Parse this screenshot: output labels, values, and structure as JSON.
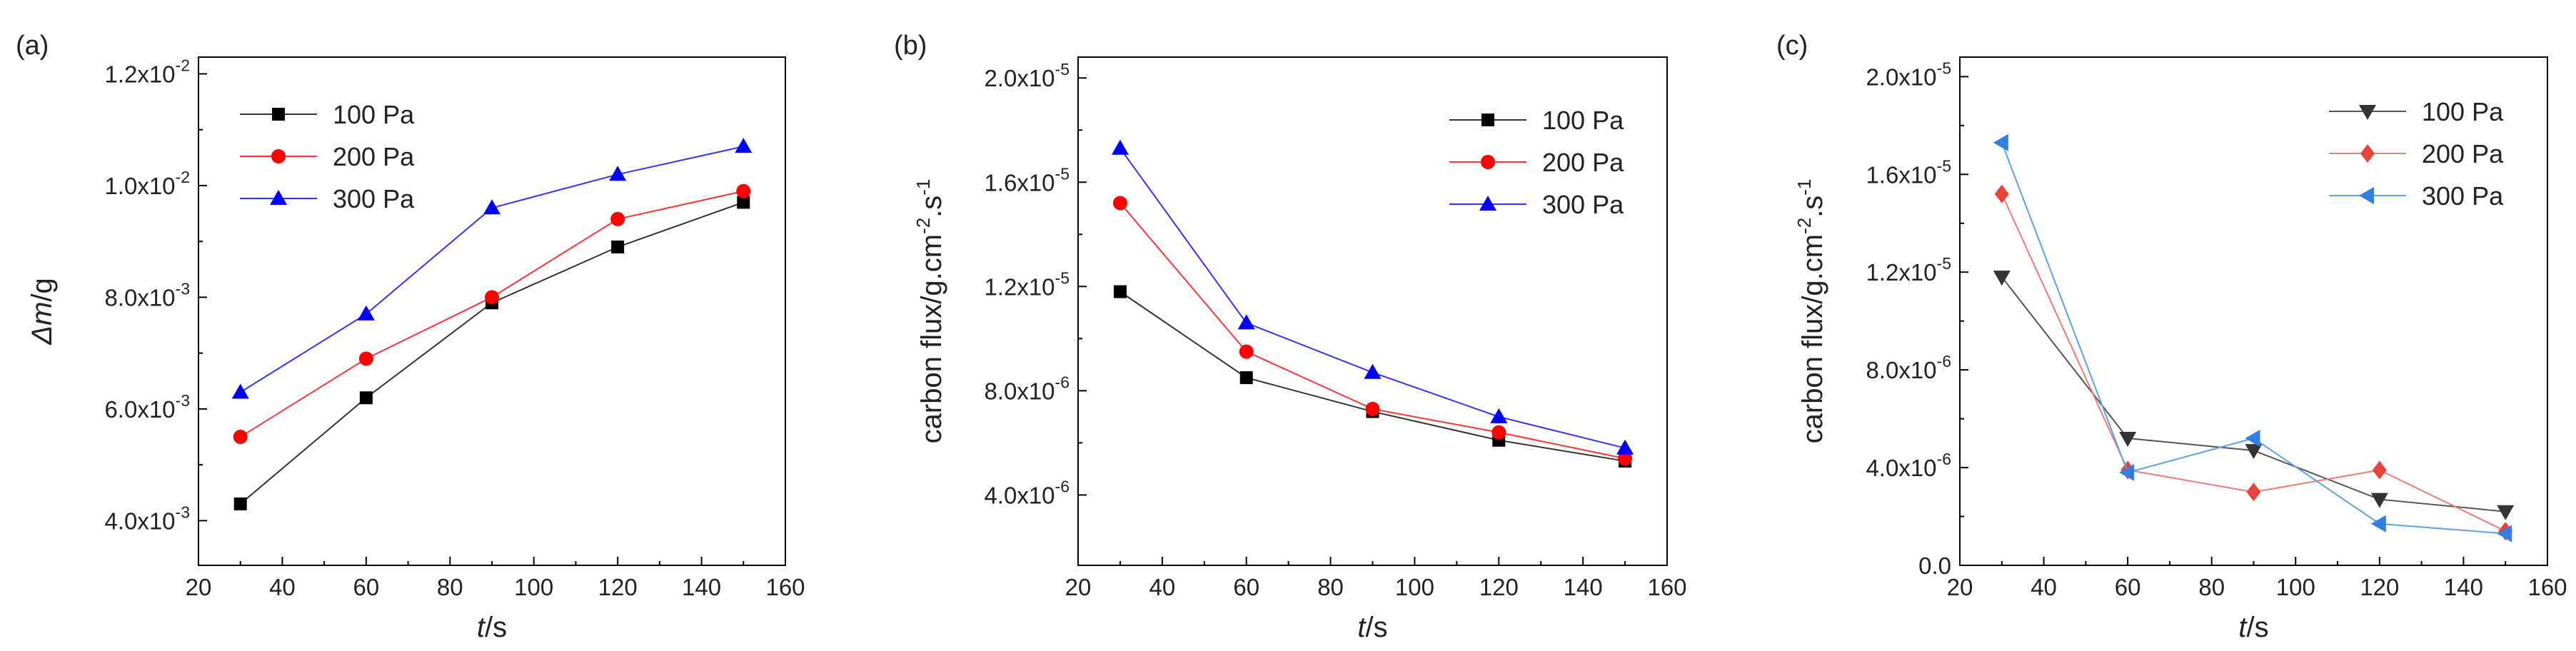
{
  "chart_data": [
    {
      "type": "line",
      "panel": "(a)",
      "xlabel_italic": "t",
      "xlabel_unit": "/s",
      "ylabel_delta": "Δ",
      "ylabel_italic": "m",
      "ylabel_unit": "/g",
      "x": [
        30,
        60,
        90,
        120,
        150
      ],
      "xlim": [
        20,
        160
      ],
      "xticks": [
        20,
        40,
        60,
        80,
        100,
        120,
        140,
        160
      ],
      "ylim": [
        0.0032,
        0.0123
      ],
      "yticks": [
        {
          "value": 0.004,
          "mant": "4.0x10",
          "exp": "-3"
        },
        {
          "value": 0.006,
          "mant": "6.0x10",
          "exp": "-3"
        },
        {
          "value": 0.008,
          "mant": "8.0x10",
          "exp": "-3"
        },
        {
          "value": 0.01,
          "mant": "1.0x10",
          "exp": "-2"
        },
        {
          "value": 0.012,
          "mant": "1.2x10",
          "exp": "-2"
        }
      ],
      "legend_position": "top-left",
      "series": [
        {
          "name": "100 Pa",
          "marker": "square",
          "color": "#000000",
          "line_color": "#333333",
          "values": [
            0.0043,
            0.0062,
            0.0079,
            0.0089,
            0.0097
          ]
        },
        {
          "name": "200 Pa",
          "marker": "circle",
          "color": "#ff0000",
          "line_color": "#ff3333",
          "values": [
            0.0055,
            0.0069,
            0.008,
            0.0094,
            0.0099
          ]
        },
        {
          "name": "300 Pa",
          "marker": "triangle-up",
          "color": "#0000ff",
          "line_color": "#3333ff",
          "values": [
            0.0063,
            0.0077,
            0.0096,
            0.0102,
            0.0107
          ]
        }
      ]
    },
    {
      "type": "line",
      "panel": "(b)",
      "xlabel_italic": "t",
      "xlabel_unit": "/s",
      "ylabel": "carbon flux/g.cm",
      "ylabel_sup1": "-2",
      "ylabel_mid": ".s",
      "ylabel_sup2": "-1",
      "x": [
        30,
        60,
        90,
        120,
        150
      ],
      "xlim": [
        20,
        160
      ],
      "xticks": [
        20,
        40,
        60,
        80,
        100,
        120,
        140,
        160
      ],
      "ylim": [
        1.3e-06,
        2.08e-05
      ],
      "yticks": [
        {
          "value": 4e-06,
          "mant": "4.0x10",
          "exp": "-6"
        },
        {
          "value": 8e-06,
          "mant": "8.0x10",
          "exp": "-6"
        },
        {
          "value": 1.2e-05,
          "mant": "1.2x10",
          "exp": "-5"
        },
        {
          "value": 1.6e-05,
          "mant": "1.6x10",
          "exp": "-5"
        },
        {
          "value": 2e-05,
          "mant": "2.0x10",
          "exp": "-5"
        }
      ],
      "legend_position": "top-right",
      "series": [
        {
          "name": "100 Pa",
          "marker": "square",
          "color": "#000000",
          "line_color": "#333333",
          "values": [
            1.18e-05,
            8.5e-06,
            7.2e-06,
            6.1e-06,
            5.3e-06
          ]
        },
        {
          "name": "200 Pa",
          "marker": "circle",
          "color": "#ff0000",
          "line_color": "#ff3333",
          "values": [
            1.52e-05,
            9.5e-06,
            7.3e-06,
            6.4e-06,
            5.4e-06
          ]
        },
        {
          "name": "300 Pa",
          "marker": "triangle-up",
          "color": "#0000ff",
          "line_color": "#3333ff",
          "values": [
            1.73e-05,
            1.06e-05,
            8.7e-06,
            7e-06,
            5.8e-06
          ]
        }
      ]
    },
    {
      "type": "line",
      "panel": "(c)",
      "xlabel_italic": "t",
      "xlabel_unit": "/s",
      "ylabel": "carbon flux/g.cm",
      "ylabel_sup1": "-2",
      "ylabel_mid": ".s",
      "ylabel_sup2": "-1",
      "x": [
        30,
        60,
        90,
        120,
        150
      ],
      "xlim": [
        20,
        160
      ],
      "xticks": [
        20,
        40,
        60,
        80,
        100,
        120,
        140,
        160
      ],
      "ylim": [
        0,
        2.08e-05
      ],
      "yticks": [
        {
          "value": 0,
          "mant": "0.0",
          "exp": ""
        },
        {
          "value": 4e-06,
          "mant": "4.0x10",
          "exp": "-6"
        },
        {
          "value": 8e-06,
          "mant": "8.0x10",
          "exp": "-6"
        },
        {
          "value": 1.2e-05,
          "mant": "1.2x10",
          "exp": "-5"
        },
        {
          "value": 1.6e-05,
          "mant": "1.6x10",
          "exp": "-5"
        },
        {
          "value": 2e-05,
          "mant": "2.0x10",
          "exp": "-5"
        }
      ],
      "legend_position": "top-right",
      "series": [
        {
          "name": "100 Pa",
          "marker": "triangle-down",
          "color": "#333333",
          "line_color": "#555555",
          "values": [
            1.18e-05,
            5.2e-06,
            4.7e-06,
            2.7e-06,
            2.2e-06
          ]
        },
        {
          "name": "200 Pa",
          "marker": "diamond",
          "color": "#e8433a",
          "line_color": "#ef7a72",
          "values": [
            1.52e-05,
            3.9e-06,
            3e-06,
            3.9e-06,
            1.4e-06
          ]
        },
        {
          "name": "300 Pa",
          "marker": "triangle-left",
          "color": "#2f80e0",
          "line_color": "#5aa0ee",
          "values": [
            1.73e-05,
            3.8e-06,
            5.2e-06,
            1.7e-06,
            1.3e-06
          ]
        }
      ]
    }
  ]
}
